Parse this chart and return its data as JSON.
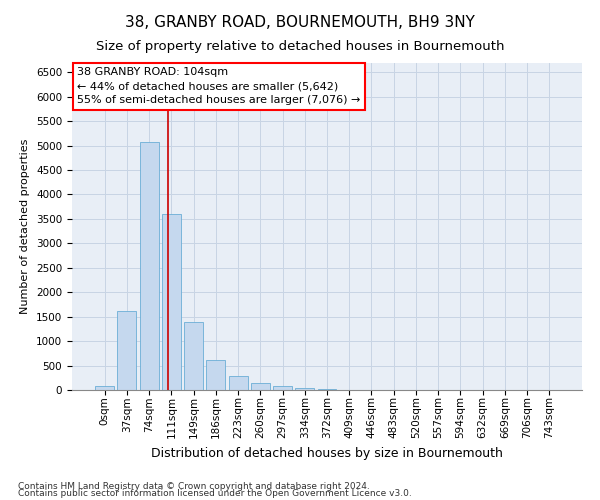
{
  "title": "38, GRANBY ROAD, BOURNEMOUTH, BH9 3NY",
  "subtitle": "Size of property relative to detached houses in Bournemouth",
  "xlabel": "Distribution of detached houses by size in Bournemouth",
  "ylabel": "Number of detached properties",
  "categories": [
    "0sqm",
    "37sqm",
    "74sqm",
    "111sqm",
    "149sqm",
    "186sqm",
    "223sqm",
    "260sqm",
    "297sqm",
    "334sqm",
    "372sqm",
    "409sqm",
    "446sqm",
    "483sqm",
    "520sqm",
    "557sqm",
    "594sqm",
    "632sqm",
    "669sqm",
    "706sqm",
    "743sqm"
  ],
  "bar_heights": [
    75,
    1620,
    5080,
    3600,
    1390,
    610,
    295,
    140,
    85,
    45,
    30,
    10,
    5,
    0,
    0,
    0,
    0,
    0,
    0,
    0,
    0
  ],
  "bar_color": "#c5d8ee",
  "bar_edge_color": "#6baed6",
  "grid_color": "#c8d4e4",
  "background_color": "#e8eef6",
  "vline_x": 2.84,
  "vline_color": "#cc0000",
  "annotation_text_line1": "38 GRANBY ROAD: 104sqm",
  "annotation_text_line2": "← 44% of detached houses are smaller (5,642)",
  "annotation_text_line3": "55% of semi-detached houses are larger (7,076) →",
  "footnote1": "Contains HM Land Registry data © Crown copyright and database right 2024.",
  "footnote2": "Contains public sector information licensed under the Open Government Licence v3.0.",
  "ylim": [
    0,
    6700
  ],
  "yticks": [
    0,
    500,
    1000,
    1500,
    2000,
    2500,
    3000,
    3500,
    4000,
    4500,
    5000,
    5500,
    6000,
    6500
  ],
  "title_fontsize": 11,
  "subtitle_fontsize": 9.5,
  "xlabel_fontsize": 9,
  "ylabel_fontsize": 8,
  "tick_fontsize": 7.5,
  "annot_fontsize": 8
}
